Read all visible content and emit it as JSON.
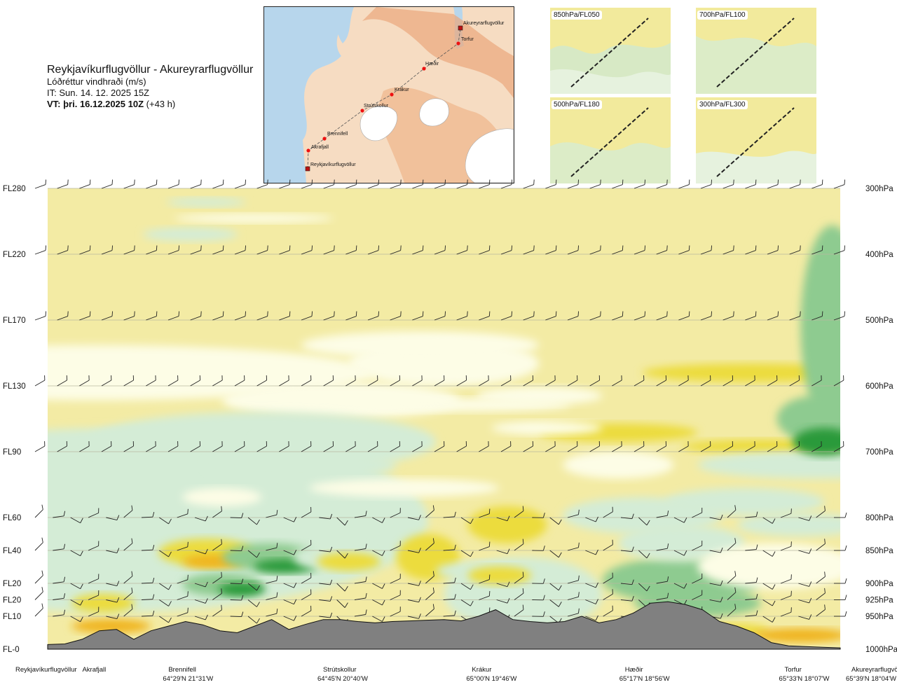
{
  "header": {
    "route": "Reykjavíkurflugvöllur - Akureyrarflugvöllur",
    "variable": "Lóðréttur vindhraði (m/s)",
    "issue_time": "IT: Sun. 14. 12. 2025 15Z",
    "valid_time": "VT: þri. 16.12.2025 10Z",
    "lead_time": " (+43 h)"
  },
  "map": {
    "waypoints": [
      "Akureyrarflugvöllur",
      "Torfur",
      "Hæðir",
      "Krákur",
      "Strútskollur",
      "Brennifell",
      "Akrafjall",
      "Reykjavíkurflugvöllur"
    ]
  },
  "mini_maps": [
    {
      "label": "850hPa/FL050"
    },
    {
      "label": "700hPa/FL100"
    },
    {
      "label": "500hPa/FL180"
    },
    {
      "label": "300hPa/FL300"
    }
  ],
  "colors": {
    "background_field": "#f3eba4",
    "pale": "#fdfde6",
    "light_green": "#d4ecd6",
    "mid_green": "#8ecb90",
    "dark_green": "#2a9a3a",
    "yellow": "#ecdc3c",
    "orange": "#f0b41c",
    "terrain": "#808080"
  },
  "chart_data": {
    "type": "heatmap",
    "flight_levels": [
      "FL280",
      "FL220",
      "FL170",
      "FL130",
      "FL90",
      "FL60",
      "FL40",
      "FL20",
      "FL20",
      "FL10",
      "FL-0"
    ],
    "pressure_levels": [
      "300hPa",
      "400hPa",
      "500hPa",
      "600hPa",
      "700hPa",
      "800hPa",
      "850hPa",
      "900hPa",
      "925hPa",
      "950hPa",
      "1000hPa"
    ],
    "pressure_values": [
      300,
      400,
      500,
      600,
      700,
      800,
      850,
      900,
      925,
      950,
      1000
    ],
    "locations": [
      {
        "name": "Reykjavíkurflugvöllur",
        "coord": "",
        "pos": 0.0
      },
      {
        "name": "Akrafjall",
        "coord": "",
        "pos": 0.08
      },
      {
        "name": "Brennifell",
        "coord": "64°29'N 21°31'W",
        "pos": 0.183
      },
      {
        "name": "Strútskollur",
        "coord": "64°45'N 20°40'W",
        "pos": 0.368
      },
      {
        "name": "Krákur",
        "coord": "65°00'N 19°46'W",
        "pos": 0.546
      },
      {
        "name": "Hæðir",
        "coord": "65°17'N 18°56'W",
        "pos": 0.729
      },
      {
        "name": "Torfur",
        "coord": "65°33'N 18°07'W",
        "pos": 0.92
      },
      {
        "name": "Akureyrarflugvöllur",
        "coord": "65°39'N 18°04'W",
        "pos": 1.0
      }
    ],
    "terrain_surface_hpa": [
      993,
      992,
      985,
      972,
      970,
      985,
      972,
      965,
      958,
      963,
      972,
      975,
      965,
      955,
      970,
      962,
      955,
      955,
      958,
      960,
      958,
      957,
      956,
      955,
      957,
      950,
      940,
      955,
      958,
      960,
      958,
      950,
      960,
      955,
      945,
      930,
      928,
      932,
      940,
      958,
      965,
      975,
      990,
      995,
      996,
      997,
      998
    ]
  }
}
